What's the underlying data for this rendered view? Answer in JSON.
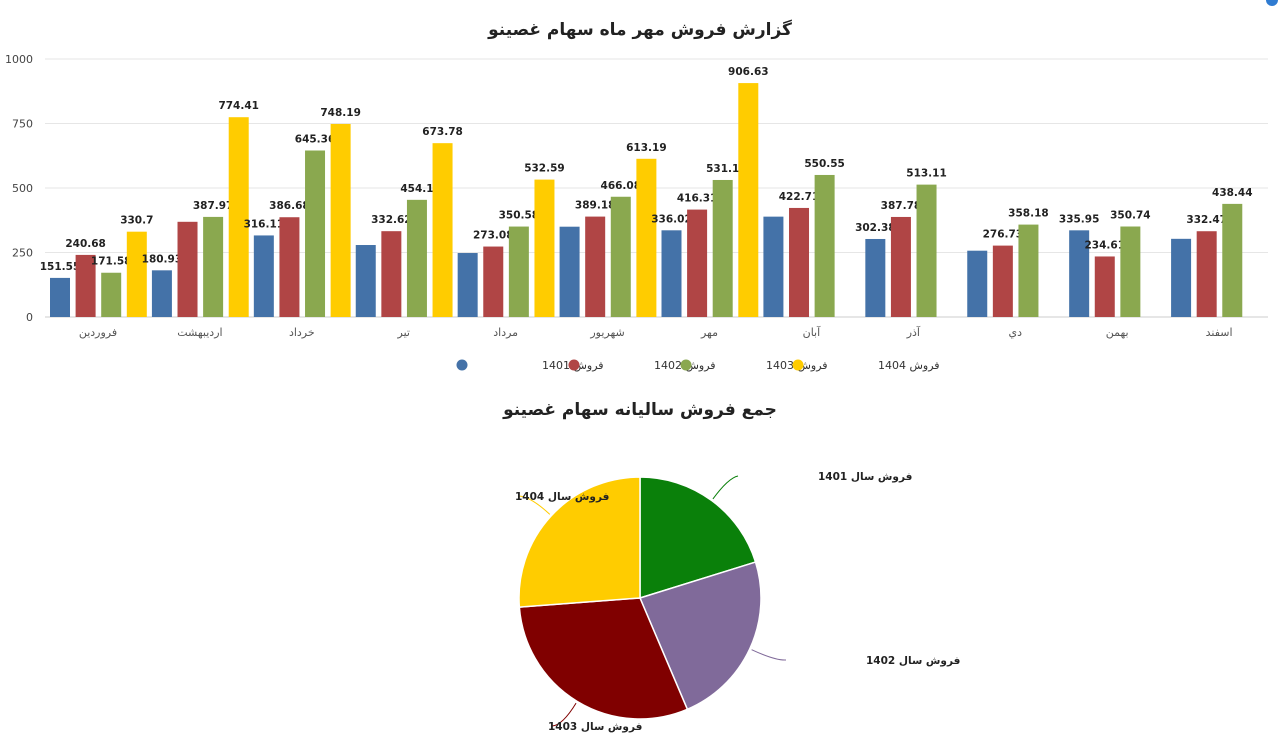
{
  "chart_data": [
    {
      "type": "bar",
      "title": "گزارش فروش مهر ماه سهام غصینو",
      "categories": [
        "فروردین",
        "اردیبهشت",
        "خرداد",
        "تیر",
        "مرداد",
        "شهریور",
        "مهر",
        "آبان",
        "آذر",
        "دي",
        "بهمن",
        "اسفند"
      ],
      "ylim": [
        0,
        1000
      ],
      "yticks": [
        0,
        250,
        500,
        750,
        1000
      ],
      "grid": true,
      "legend_position": "bottom",
      "series": [
        {
          "name": "فروش 1401",
          "color": "#4472a8",
          "values": [
            151.55,
            180.93,
            316.11,
            279,
            248,
            350,
            336.02,
            389,
            302.38,
            257,
            335.95,
            303
          ],
          "labels": [
            "151.55",
            "180.93",
            "316.11",
            null,
            null,
            null,
            "336.02",
            null,
            "302.38",
            null,
            "335.95",
            null
          ]
        },
        {
          "name": "فروش 1402",
          "color": "#b04545",
          "values": [
            240.68,
            369,
            386.68,
            332.62,
            273.08,
            389.18,
            416.31,
            422.71,
            387.78,
            276.73,
            234.61,
            332.47
          ],
          "labels": [
            "240.68",
            null,
            "386.68",
            "332.62",
            "273.08",
            "389.18",
            "416.31",
            "422.71",
            "387.78",
            "276.73",
            "234.61",
            "332.47"
          ]
        },
        {
          "name": "فروش 1403",
          "color": "#8aa84f",
          "values": [
            171.58,
            387.97,
            645.36,
            454.1,
            350.58,
            466.08,
            531.1,
            550.55,
            513.11,
            358.18,
            350.74,
            438.44
          ],
          "labels": [
            "171.58",
            "387.97",
            "645.36",
            "454.1",
            "350.58",
            "466.08",
            "531.1",
            "550.55",
            "513.11",
            "358.18",
            "350.74",
            "438.44"
          ]
        },
        {
          "name": "فروش 1404",
          "color": "#ffcc00",
          "values": [
            330.7,
            774.41,
            748.19,
            673.78,
            532.59,
            613.19,
            906.63,
            null,
            null,
            null,
            null,
            null
          ],
          "labels": [
            "330.7",
            "774.41",
            "748.19",
            "673.78",
            "532.59",
            "613.19",
            "906.63",
            null,
            null,
            null,
            null,
            null
          ]
        }
      ]
    },
    {
      "type": "pie",
      "title": "جمع فروش سالیانه سهام غصینو",
      "slices": [
        {
          "label": "فروش سال 1401",
          "value": 20.2,
          "color": "#0a800a"
        },
        {
          "label": "فروش سال 1402",
          "value": 23.4,
          "color": "#806a9a"
        },
        {
          "label": "فروش سال 1403",
          "value": 30.2,
          "color": "#800000"
        },
        {
          "label": "فروش سال 1404",
          "value": 26.2,
          "color": "#ffcc00"
        }
      ]
    }
  ]
}
